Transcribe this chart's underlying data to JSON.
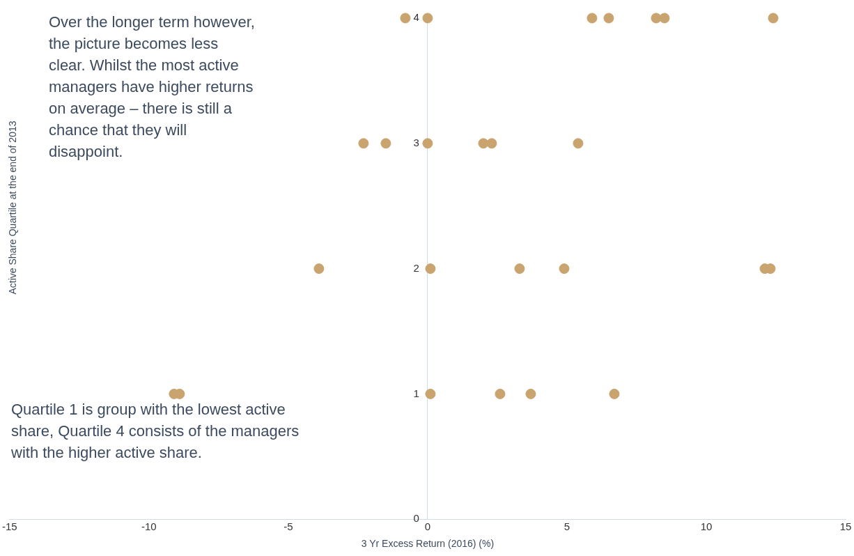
{
  "chart_data": {
    "type": "scatter",
    "xlabel": "3 Yr Excess Return (2016) (%)",
    "ylabel": "Active Share Quartile at the end of 2013",
    "annotations": [
      "Over the longer term however, the picture becomes less clear. Whilst the most active managers have higher returns on average – there is still a chance that they will disappoint.",
      "Quartile 1 is group with the lowest active share, Quartile 4 consists of the managers with the higher active share."
    ],
    "series": [
      {
        "color": "#c9a46e",
        "x": [
          -0.8,
          0,
          5.9,
          6.5,
          8.2,
          8.5,
          12.4,
          -2.3,
          -1.5,
          0,
          2,
          2.3,
          5.4,
          -3.9,
          0.1,
          3.3,
          4.9,
          12.1,
          12.3,
          -9.1,
          -8.9,
          0.1,
          2.6,
          3.7,
          6.7
        ],
        "values": [
          4,
          4,
          4,
          4,
          4,
          4,
          4,
          3,
          3,
          3,
          3,
          3,
          3,
          2,
          2,
          2,
          2,
          2,
          2,
          1,
          1,
          1,
          1,
          1,
          1
        ]
      }
    ],
    "xlim": [
      -15,
      15
    ],
    "xticks": [
      -15,
      -10,
      -5,
      0,
      5,
      10,
      15
    ],
    "ylim": [
      0,
      4
    ],
    "yticks": [
      0,
      1,
      2,
      3,
      4
    ],
    "grid": false,
    "legend": false,
    "marker": "circle"
  }
}
